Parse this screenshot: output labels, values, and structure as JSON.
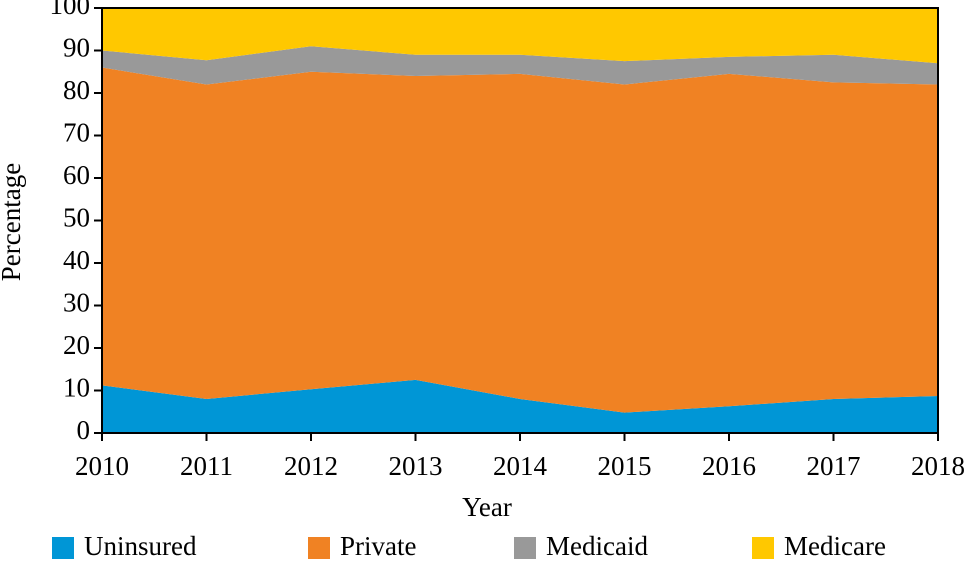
{
  "chart_data": {
    "type": "stacked_area",
    "x": [
      2010,
      2011,
      2012,
      2013,
      2014,
      2015,
      2016,
      2017,
      2018
    ],
    "xlim": [
      2010,
      2018
    ],
    "xticks": [
      2010,
      2011,
      2012,
      2013,
      2014,
      2015,
      2016,
      2017,
      2018
    ],
    "ylim": [
      0,
      100
    ],
    "yticks": [
      0,
      10,
      20,
      30,
      40,
      50,
      60,
      70,
      80,
      90,
      100
    ],
    "x_label": "Year",
    "y_label": "Percentage",
    "legend": "bottom",
    "series": [
      {
        "name": "Uninsured",
        "color": "#0096d6",
        "values": [
          11.2,
          8,
          10.3,
          12.5,
          8,
          4.8,
          6.3,
          8,
          8.7
        ]
      },
      {
        "name": "Private",
        "color": "#f08223",
        "values": [
          74.8,
          74,
          74.7,
          71.5,
          76.5,
          77.2,
          78.2,
          74.5,
          73.3
        ]
      },
      {
        "name": "Medicaid",
        "color": "#999999",
        "values": [
          4,
          5.7,
          6,
          5,
          4.5,
          5.5,
          4,
          6.5,
          5
        ]
      },
      {
        "name": "Medicare",
        "color": "#ffc800",
        "values": [
          10,
          12.3,
          9,
          11,
          11,
          12.5,
          11.5,
          11,
          13
        ]
      }
    ]
  }
}
